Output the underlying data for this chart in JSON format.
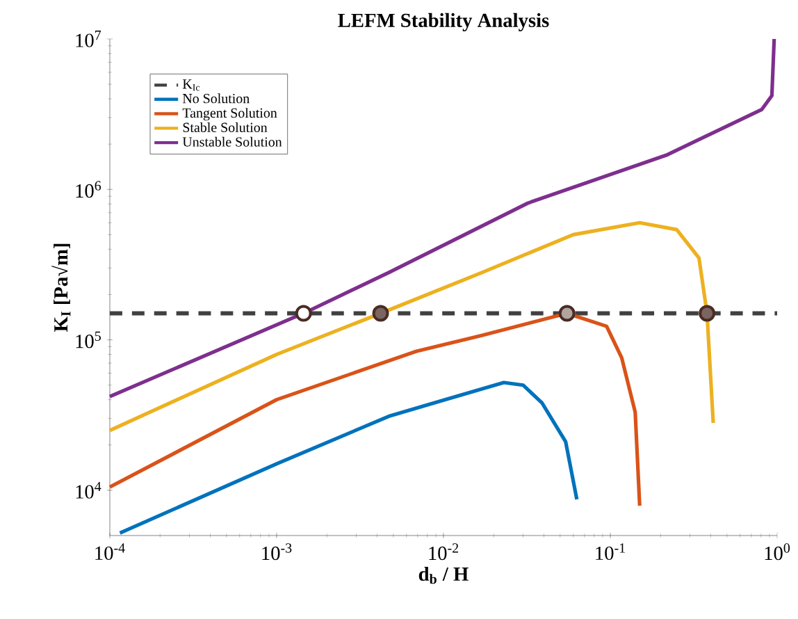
{
  "chart_data": {
    "type": "line",
    "title": "LEFM Stability Analysis",
    "xlabel": "d$_{b}$ / H",
    "ylabel": "K$_{I}$ [Pa√m]",
    "log": "xy",
    "xlim": [
      0.0001,
      1
    ],
    "ylim": [
      5000,
      10000000
    ],
    "xticks": [
      {
        "value": 0.0001,
        "label": "10$^{-4}$"
      },
      {
        "value": 0.001,
        "label": "10$^{-3}$"
      },
      {
        "value": 0.01,
        "label": "10$^{-2}$"
      },
      {
        "value": 0.1,
        "label": "10$^{-1}$"
      },
      {
        "value": 1,
        "label": "10$^{0}$"
      }
    ],
    "yticks": [
      {
        "value": 10000,
        "label": "10$^{4}$"
      },
      {
        "value": 100000,
        "label": "10$^{5}$"
      },
      {
        "value": 1000000,
        "label": "10$^{6}$"
      },
      {
        "value": 10000000,
        "label": "10$^{7}$"
      }
    ],
    "grid": false,
    "legend": "top left",
    "line_style": "solid",
    "ref_lines": [
      {
        "axis": "y",
        "value": 150000,
        "label": "K$_{Ic}$",
        "color": "#404040",
        "line_style": "dashed"
      }
    ],
    "series": [
      {
        "name": "No Solution",
        "color": "#0072bd",
        "x": [
          0.000115,
          0.001,
          0.0047,
          0.0102,
          0.023,
          0.03,
          0.039,
          0.054,
          0.063
        ],
        "values": [
          5200,
          15000,
          31000,
          40000,
          52000,
          50000,
          38000,
          21000,
          8700
        ]
      },
      {
        "name": "Tangent Solution",
        "color": "#d95319",
        "x": [
          0.0001,
          0.001,
          0.0069,
          0.017,
          0.055,
          0.095,
          0.117,
          0.141,
          0.15
        ],
        "values": [
          10500,
          40000,
          84000,
          107000,
          150000,
          123000,
          76000,
          33000,
          7900
        ]
      },
      {
        "name": "Stable Solution",
        "color": "#edb120",
        "x": [
          0.0001,
          0.001,
          0.0042,
          0.017,
          0.06,
          0.15,
          0.25,
          0.34,
          0.38,
          0.414
        ],
        "values": [
          25000,
          80000,
          150000,
          280000,
          500000,
          600000,
          540000,
          350000,
          150000,
          28000
        ]
      },
      {
        "name": "Unstable Solution",
        "color": "#7e2f8e",
        "x": [
          0.0001,
          0.00145,
          0.0047,
          0.032,
          0.22,
          0.81,
          0.93,
          0.96
        ],
        "values": [
          42000,
          150000,
          280000,
          810000,
          1700000,
          3400000,
          4200000,
          10000000
        ]
      },
      {
        "type": "scatter",
        "marker": "circle",
        "color": "#b3a4a0",
        "x": [
          0.055
        ],
        "values": [
          150000
        ]
      },
      {
        "type": "scatter",
        "marker": "circle",
        "color": "#7a6560",
        "x": [
          0.0042,
          0.38
        ],
        "values": [
          150000,
          150000
        ]
      },
      {
        "type": "scatter",
        "marker": "circle",
        "color": "#ffffff",
        "x": [
          0.00145
        ],
        "values": [
          150000
        ]
      }
    ]
  }
}
